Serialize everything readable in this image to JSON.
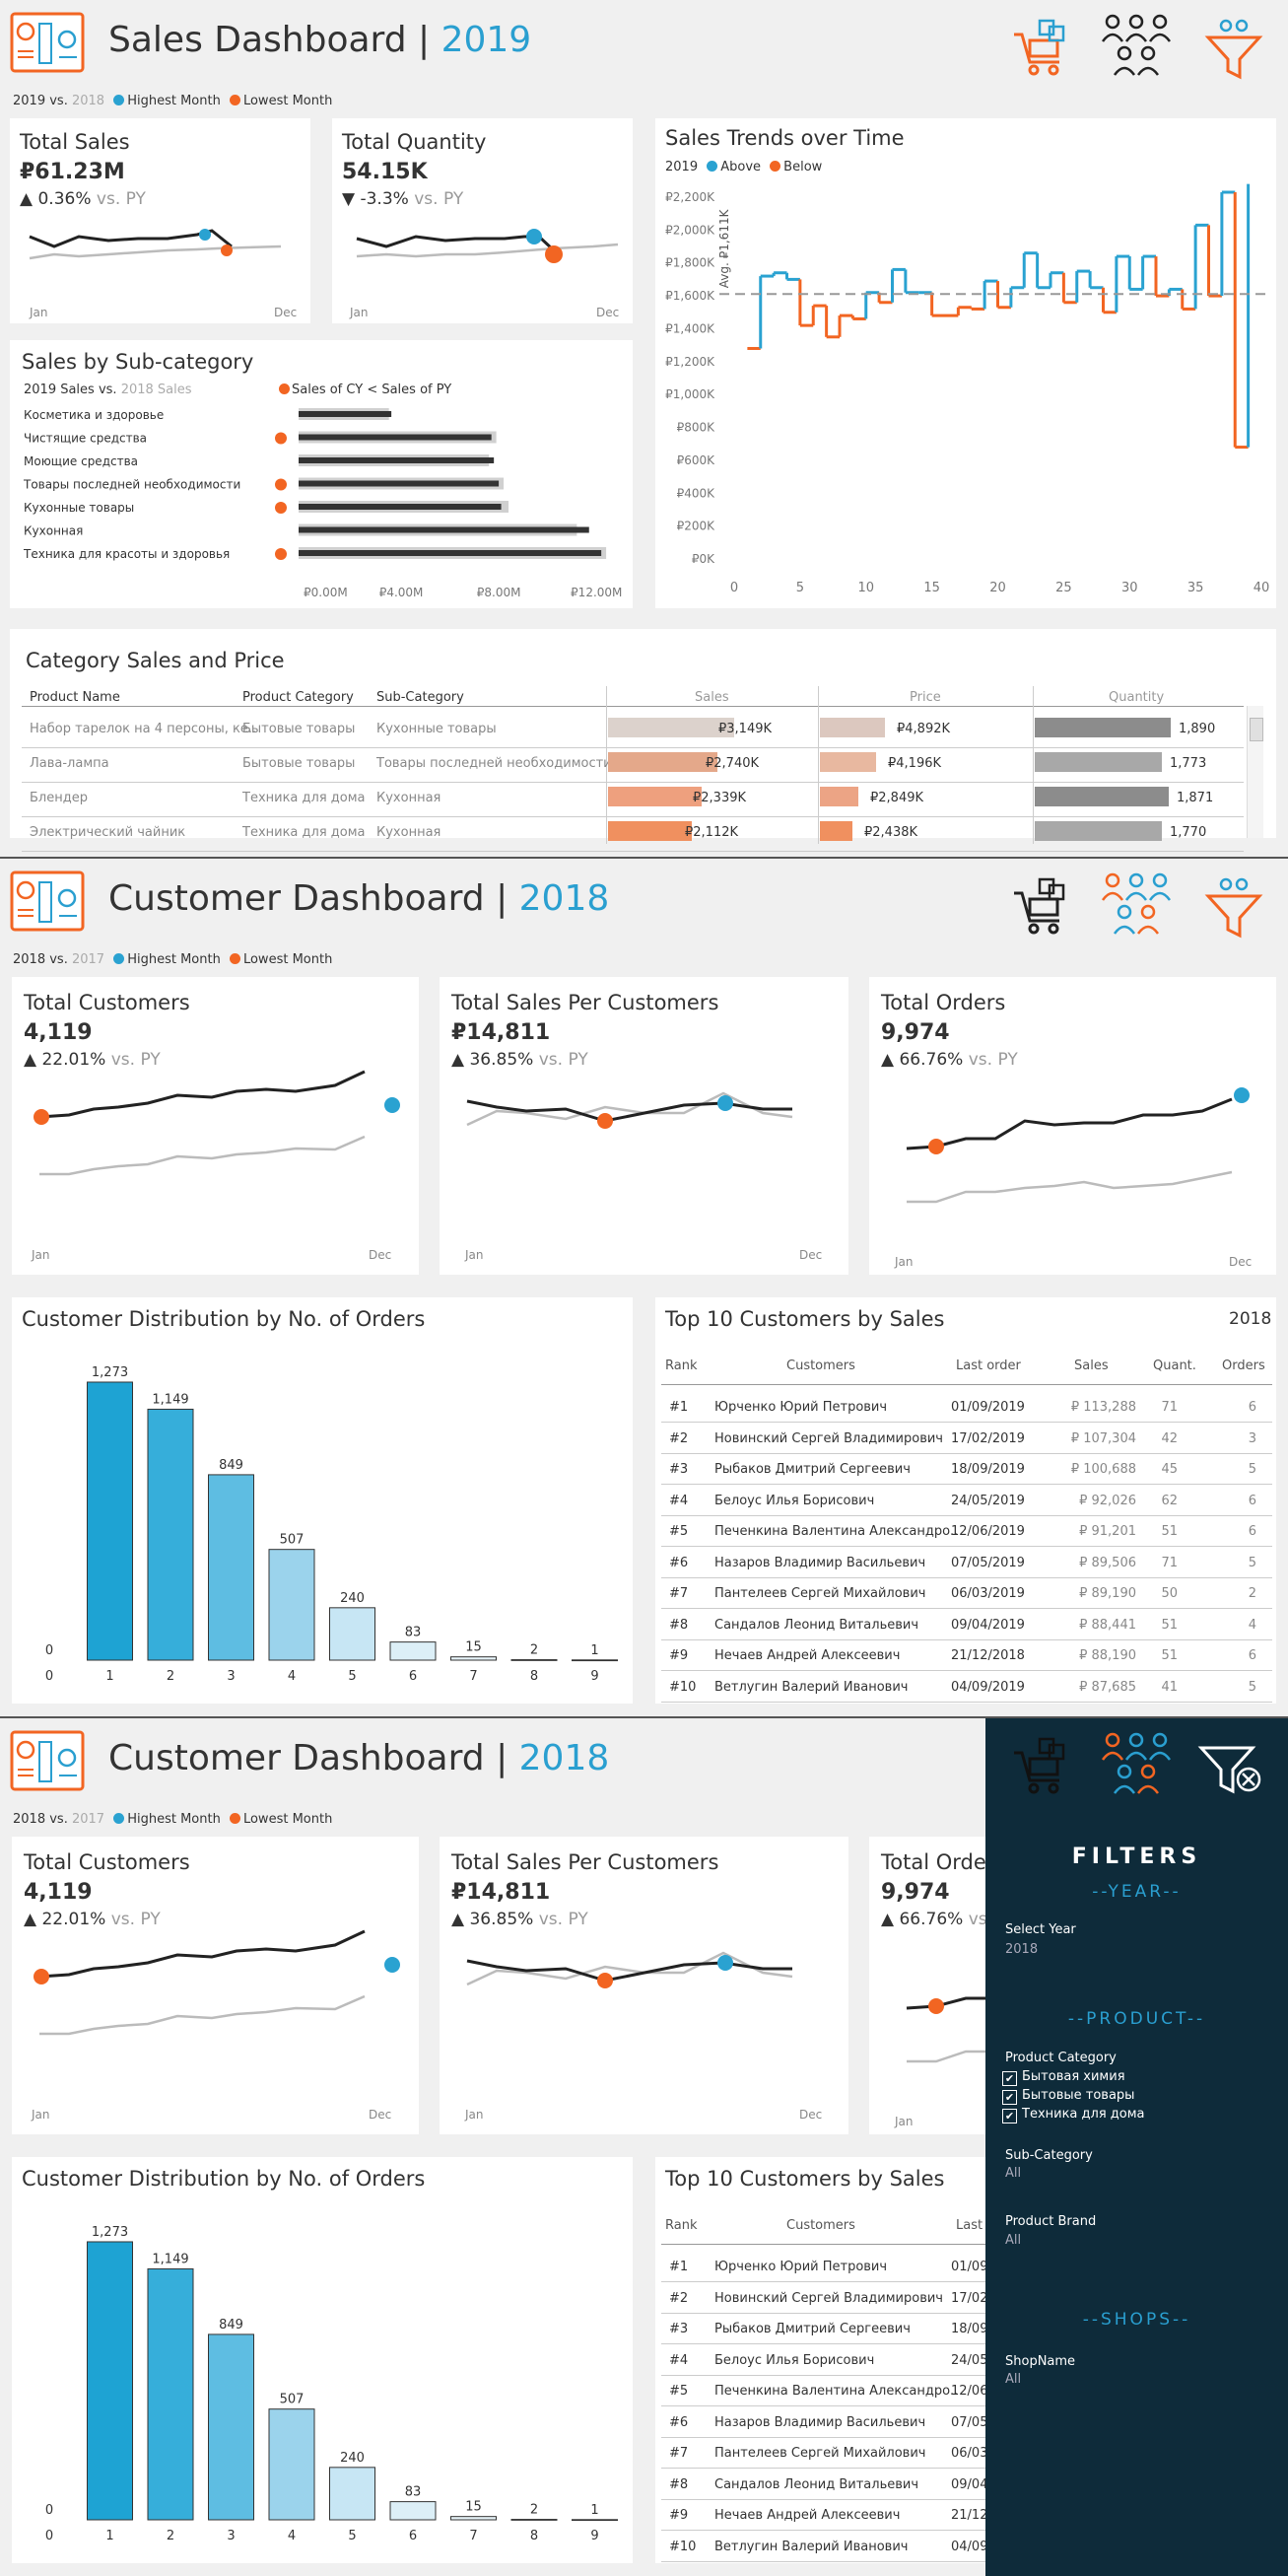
{
  "sales": {
    "title_main": "Sales Dashboard",
    "title_sep": " | ",
    "title_year": "2019",
    "legend": {
      "cy": "2019",
      "vs": " vs. ",
      "py": "2018",
      "high": "Highest Month",
      "low": "Lowest Month"
    },
    "kpis": [
      {
        "title": "Total Sales",
        "value": "₽61.23M",
        "arrow": "▲",
        "change": "0.36%",
        "vs": " vs. PY",
        "start": "Jan",
        "end": "Dec"
      },
      {
        "title": "Total Quantity",
        "value": "54.15K",
        "arrow": "▼",
        "change": "-3.3%",
        "vs": " vs. PY",
        "start": "Jan",
        "end": "Dec"
      }
    ],
    "subcat": {
      "title": "Sales by Sub-category",
      "legend_cy": "2019 Sales",
      "legend_vs": " vs. ",
      "legend_py": "2018 Sales",
      "marker_legend": "Sales of CY < Sales of PY",
      "chart_data": {
        "type": "bar",
        "categories": [
          "Косметика и здоровье",
          "Чистящие средства",
          "Моющие средства",
          "Товары последней необходимости",
          "Кухонные товары",
          "Кухонная",
          "Техника для красоты и здоровья"
        ],
        "series": [
          {
            "name": "2019 Sales",
            "values": [
              3.8,
              7.9,
              8.0,
              8.2,
              8.3,
              11.9,
              12.4
            ]
          },
          {
            "name": "2018 Sales",
            "values": [
              3.7,
              8.1,
              7.8,
              8.4,
              8.6,
              11.4,
              12.6
            ]
          }
        ],
        "below_py": [
          false,
          true,
          false,
          true,
          true,
          false,
          true
        ],
        "xticks": [
          "₽0.00M",
          "₽4.00M",
          "₽8.00M",
          "₽12.00M"
        ],
        "xlim": [
          0,
          13
        ]
      }
    },
    "trend": {
      "title": "Sales Trends over Time",
      "legend_year": "2019",
      "above": "Above",
      "below": "Below",
      "avg_label": "Avg. ₽1,611K",
      "chart_data": {
        "type": "line",
        "avg": 1611,
        "ylim": [
          0,
          2200
        ],
        "yticks": [
          "₽0K",
          "₽200K",
          "₽400K",
          "₽600K",
          "₽800K",
          "₽1,000K",
          "₽1,200K",
          "₽1,400K",
          "₽1,600K",
          "₽1,800K",
          "₽2,000K",
          "₽2,200K"
        ],
        "xticks": [
          "0",
          "5",
          "10",
          "15",
          "20",
          "25",
          "30",
          "35",
          "40"
        ],
        "xlim": [
          0,
          40
        ],
        "x": [
          1,
          2,
          3,
          4,
          5,
          6,
          7,
          8,
          9,
          10,
          11,
          12,
          13,
          14,
          15,
          16,
          17,
          18,
          19,
          20,
          21,
          22,
          23,
          24,
          25,
          26,
          27,
          28,
          29,
          30,
          31,
          32,
          33,
          34,
          35,
          36,
          37,
          38,
          39
        ],
        "values": [
          1280,
          1720,
          1740,
          1700,
          1420,
          1540,
          1350,
          1480,
          1460,
          1620,
          1560,
          1760,
          1620,
          1620,
          1480,
          1480,
          1530,
          1520,
          1690,
          1530,
          1650,
          1860,
          1650,
          1740,
          1560,
          1750,
          1650,
          1500,
          1840,
          1640,
          1840,
          1600,
          1640,
          1520,
          2030,
          1600,
          2230,
          680,
          2280
        ]
      }
    },
    "table": {
      "title": "Category Sales and Price",
      "headers": [
        "Product Name",
        "Product Category",
        "Sub-Category",
        "Sales",
        "Price",
        "Quantity"
      ],
      "rows": [
        {
          "name": "Набор тарелок на 4 персоны, ке..",
          "cat": "Бытовые товары",
          "sub": "Кухонные товары",
          "sales": "₽3,149K",
          "price": "₽4,892K",
          "qty": "1,890",
          "s": 0.85,
          "p": 0.78,
          "q": 0.95
        },
        {
          "name": "Лава-лампа",
          "cat": "Бытовые товары",
          "sub": "Товары последней необходимости",
          "sales": "₽2,740K",
          "price": "₽4,196K",
          "qty": "1,773",
          "s": 0.74,
          "p": 0.67,
          "q": 0.89
        },
        {
          "name": "Блендер",
          "cat": "Техника для дома",
          "sub": "Кухонная",
          "sales": "₽2,339K",
          "price": "₽2,849K",
          "qty": "1,871",
          "s": 0.63,
          "p": 0.46,
          "q": 0.94
        },
        {
          "name": "Электрический чайник",
          "cat": "Техника для дома",
          "sub": "Кухонная",
          "sales": "₽2,112K",
          "price": "₽2,438K",
          "qty": "1,770",
          "s": 0.57,
          "p": 0.39,
          "q": 0.89
        }
      ]
    }
  },
  "customer": {
    "title_main": "Customer Dashboard",
    "title_sep": " | ",
    "title_year": "2018",
    "legend": {
      "cy": "2018",
      "vs": " vs. ",
      "py": "2017",
      "high": "Highest Month",
      "low": "Lowest Month"
    },
    "kpis": [
      {
        "title": "Total Customers",
        "value": "4,119",
        "arrow": "▲",
        "change": "22.01%",
        "vs": " vs. PY",
        "start": "Jan",
        "end": "Dec"
      },
      {
        "title": "Total Sales Per Customers",
        "value": "₽14,811",
        "arrow": "▲",
        "change": "36.85%",
        "vs": " vs. PY",
        "start": "Jan",
        "end": "Dec"
      },
      {
        "title": "Total Orders",
        "value": "9,974",
        "arrow": "▲",
        "change": "66.76%",
        "vs": " vs. PY",
        "start": "Jan",
        "end": "Dec"
      }
    ],
    "dist": {
      "title": "Customer Distribution by No. of Orders",
      "chart_data": {
        "type": "bar",
        "categories": [
          "0",
          "1",
          "2",
          "3",
          "4",
          "5",
          "6",
          "7",
          "8",
          "9"
        ],
        "values": [
          0,
          1273,
          1149,
          849,
          507,
          240,
          83,
          15,
          2,
          1
        ],
        "labels": [
          "0",
          "1,273",
          "1,149",
          "849",
          "507",
          "240",
          "83",
          "15",
          "2",
          "1"
        ],
        "ylim": [
          0,
          1300
        ]
      }
    },
    "top10": {
      "title": "Top 10 Customers by Sales",
      "year": "2018",
      "headers": [
        "Rank",
        "Customers",
        "Last order",
        "Sales",
        "Quant.",
        "Orders"
      ],
      "rows": [
        {
          "rank": "#1",
          "name": "Юрченко Юрий Петрович",
          "last": "01/09/2019",
          "sales": "₽ 113,288",
          "qty": "71",
          "orders": "6"
        },
        {
          "rank": "#2",
          "name": "Новинский Сергей Владимирович",
          "last": "17/02/2019",
          "sales": "₽ 107,304",
          "qty": "42",
          "orders": "3"
        },
        {
          "rank": "#3",
          "name": "Рыбаков Дмитрий Сергеевич",
          "last": "18/09/2019",
          "sales": "₽ 100,688",
          "qty": "45",
          "orders": "5"
        },
        {
          "rank": "#4",
          "name": "Белоус Илья Борисович",
          "last": "24/05/2019",
          "sales": "₽ 92,026",
          "qty": "62",
          "orders": "6"
        },
        {
          "rank": "#5",
          "name": "Печенкина Валентина Александро..",
          "last": "12/06/2019",
          "sales": "₽ 91,201",
          "qty": "51",
          "orders": "6"
        },
        {
          "rank": "#6",
          "name": "Назаров Владимир Васильевич",
          "last": "07/05/2019",
          "sales": "₽ 89,506",
          "qty": "71",
          "orders": "5"
        },
        {
          "rank": "#7",
          "name": "Пантелеев Сергей Михайлович",
          "last": "06/03/2019",
          "sales": "₽ 89,190",
          "qty": "50",
          "orders": "2"
        },
        {
          "rank": "#8",
          "name": "Сандалов Леонид Витальевич",
          "last": "09/04/2019",
          "sales": "₽ 88,441",
          "qty": "51",
          "orders": "4"
        },
        {
          "rank": "#9",
          "name": "Нечаев Андрей Алексеевич",
          "last": "21/12/2018",
          "sales": "₽ 88,190",
          "qty": "51",
          "orders": "6"
        },
        {
          "rank": "#10",
          "name": "Ветлугин Валерий Иванович",
          "last": "04/09/2019",
          "sales": "₽ 87,685",
          "qty": "41",
          "orders": "5"
        }
      ]
    }
  },
  "filters": {
    "title": "FILTERS",
    "year_section": "--YEAR--",
    "select_year_label": "Select Year",
    "select_year_value": "2018",
    "product_section": "--PRODUCT--",
    "category_label": "Product Category",
    "categories": [
      "Бытовая химия",
      "Бытовые товары",
      "Техника для дома"
    ],
    "subcat_label": "Sub-Category",
    "subcat_value": "All",
    "brand_label": "Product Brand",
    "brand_value": "All",
    "shops_section": "--SHOPS--",
    "shop_label": "ShopName",
    "shop_value": "All"
  },
  "colors": {
    "blue": "#2aa2d1",
    "orange": "#f26522",
    "dark": "#222222",
    "grey": "#bbbbbb"
  }
}
